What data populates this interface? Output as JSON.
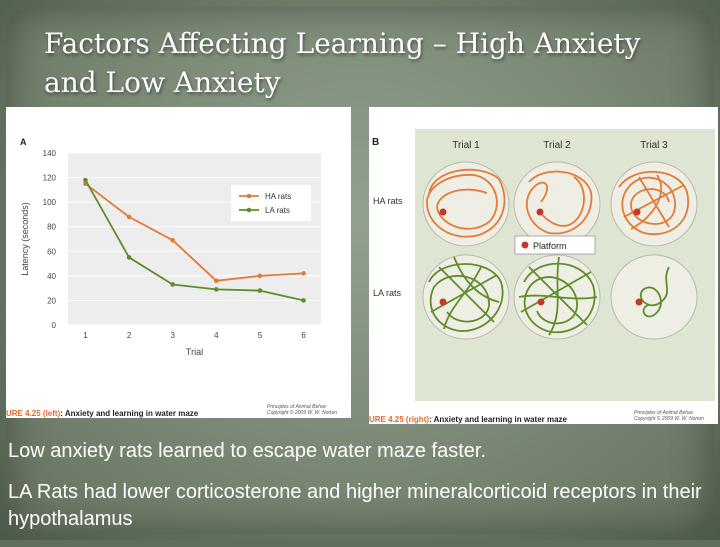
{
  "slide": {
    "title": "Factors Affecting Learning – High Anxiety and Low Anxiety",
    "bullets": [
      "Low anxiety rats learned to escape water maze faster.",
      "LA Rats had lower corticosterone and higher mineralcorticoid receptors in their hypothalamus"
    ]
  },
  "panel_a": {
    "caption_fig": "URE 4.25",
    "caption_part": "(left)",
    "caption_rest": ": Anxiety and learning in water maze",
    "credit_line1": "Principles of Animal Behav",
    "credit_line2": "Copyright © 2009 W. W. Norton"
  },
  "panel_b": {
    "caption_fig": "URE 4.25",
    "caption_part": "(right)",
    "caption_rest": ": Anxiety and learning in water maze",
    "credit_line1": "Principles of Animal Behav",
    "credit_line2": "Copyright © 2009 W. W. Norton",
    "panel_label": "B",
    "trials": [
      "Trial 1",
      "Trial 2",
      "Trial 3"
    ],
    "rows": [
      "HA rats",
      "LA rats"
    ],
    "platform_label": "Platform",
    "colors": {
      "ha": "#e07b39",
      "la": "#5e8e2a",
      "platform": "#c0392b",
      "dish": "#efeee4"
    }
  },
  "chart_data": {
    "type": "line",
    "panel_label": "A",
    "x": [
      1,
      2,
      3,
      4,
      5,
      6
    ],
    "series": [
      {
        "name": "HA rats",
        "color": "#e07b39",
        "values": [
          115,
          88,
          69,
          36,
          40,
          42
        ]
      },
      {
        "name": "LA rats",
        "color": "#5e8e2a",
        "values": [
          118,
          55,
          33,
          29,
          28,
          20
        ]
      }
    ],
    "xlabel": "Trial",
    "ylabel": "Latency (seconds)",
    "ylim": [
      0,
      140
    ],
    "yticks": [
      0,
      20,
      40,
      60,
      80,
      100,
      120,
      140
    ],
    "grid": true,
    "legend": "top-right",
    "background": "#ededed"
  }
}
